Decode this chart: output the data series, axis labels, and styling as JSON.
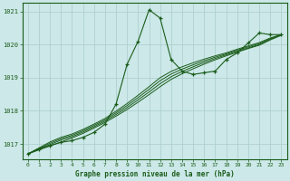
{
  "title": "Graphe pression niveau de la mer (hPa)",
  "background_color": "#cce8e8",
  "grid_color": "#aacccc",
  "line_color": "#1a5c1a",
  "xlim": [
    -0.5,
    23.5
  ],
  "ylim": [
    1016.55,
    1021.25
  ],
  "yticks": [
    1017,
    1018,
    1019,
    1020,
    1021
  ],
  "xticks": [
    0,
    1,
    2,
    3,
    4,
    5,
    6,
    7,
    8,
    9,
    10,
    11,
    12,
    13,
    14,
    15,
    16,
    17,
    18,
    19,
    20,
    21,
    22,
    23
  ],
  "spiky": [
    1016.7,
    1016.85,
    1016.95,
    1017.05,
    1017.1,
    1017.2,
    1017.35,
    1017.6,
    1018.2,
    1019.4,
    1020.1,
    1021.05,
    1020.8,
    1019.55,
    1019.2,
    1019.1,
    1019.15,
    1019.2,
    1019.55,
    1019.75,
    1020.05,
    1020.35,
    1020.3,
    1020.3
  ],
  "trend1": [
    1016.7,
    1016.82,
    1016.94,
    1017.06,
    1017.18,
    1017.32,
    1017.48,
    1017.65,
    1017.84,
    1018.04,
    1018.26,
    1018.49,
    1018.73,
    1018.95,
    1019.12,
    1019.27,
    1019.41,
    1019.54,
    1019.66,
    1019.77,
    1019.88,
    1019.98,
    1020.14,
    1020.28
  ],
  "trend2": [
    1016.7,
    1016.84,
    1016.98,
    1017.12,
    1017.22,
    1017.36,
    1017.52,
    1017.69,
    1017.89,
    1018.1,
    1018.33,
    1018.57,
    1018.82,
    1019.03,
    1019.19,
    1019.33,
    1019.46,
    1019.58,
    1019.69,
    1019.8,
    1019.9,
    1020.0,
    1020.16,
    1020.3
  ],
  "trend3": [
    1016.7,
    1016.86,
    1017.02,
    1017.16,
    1017.26,
    1017.4,
    1017.56,
    1017.73,
    1017.94,
    1018.16,
    1018.4,
    1018.65,
    1018.91,
    1019.11,
    1019.26,
    1019.39,
    1019.51,
    1019.62,
    1019.72,
    1019.83,
    1019.93,
    1020.03,
    1020.18,
    1020.3
  ],
  "trend4": [
    1016.7,
    1016.88,
    1017.06,
    1017.2,
    1017.3,
    1017.44,
    1017.6,
    1017.77,
    1017.99,
    1018.22,
    1018.47,
    1018.73,
    1019.0,
    1019.19,
    1019.33,
    1019.45,
    1019.56,
    1019.66,
    1019.75,
    1019.86,
    1019.96,
    1020.06,
    1020.2,
    1020.3
  ]
}
